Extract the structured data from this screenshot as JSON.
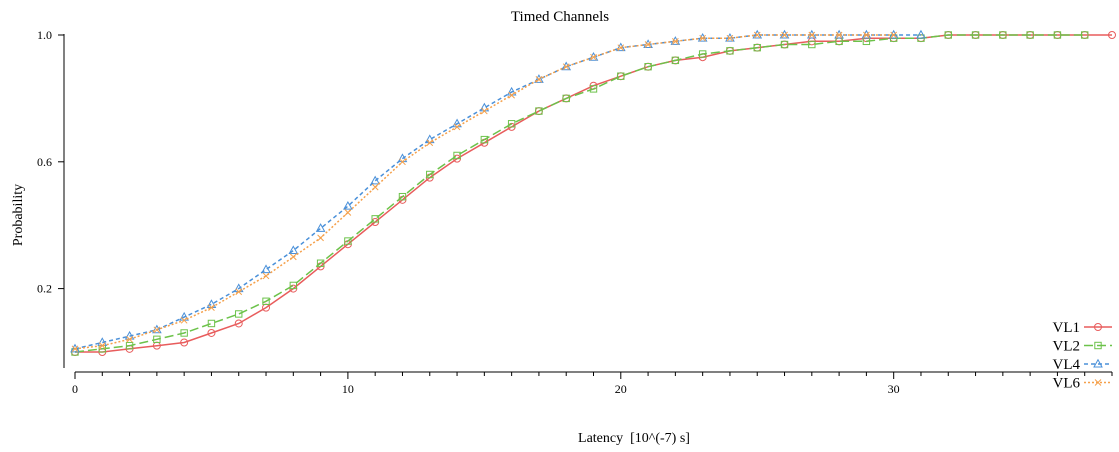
{
  "chart_data": {
    "type": "line",
    "title": "Timed Channels",
    "xlabel": "Latency  [10^(-7) s]",
    "ylabel": "Probability",
    "xlim": [
      0,
      38
    ],
    "ylim": [
      0.0,
      1.0
    ],
    "x_ticks": [
      0,
      10,
      20,
      30
    ],
    "y_ticks": [
      0.2,
      0.6,
      1.0
    ],
    "x_tick_labels": [
      "0",
      "10",
      "20",
      "30"
    ],
    "y_tick_labels": [
      "0.2",
      "0.6",
      "1.0"
    ],
    "grid": false,
    "legend_position": "bottom-right",
    "series": [
      {
        "name": "VL1",
        "color": "#e85c5c",
        "marker": "circle",
        "dash": "solid",
        "x": [
          0,
          1,
          2,
          3,
          4,
          5,
          6,
          7,
          8,
          9,
          10,
          11,
          12,
          13,
          14,
          15,
          16,
          17,
          18,
          19,
          20,
          21,
          22,
          23,
          24,
          25,
          26,
          27,
          28,
          29,
          30,
          31,
          32,
          33,
          34,
          35,
          36,
          37,
          38
        ],
        "y": [
          0.0,
          0.0,
          0.01,
          0.02,
          0.03,
          0.06,
          0.09,
          0.14,
          0.2,
          0.27,
          0.34,
          0.41,
          0.48,
          0.55,
          0.61,
          0.66,
          0.71,
          0.76,
          0.8,
          0.84,
          0.87,
          0.9,
          0.92,
          0.93,
          0.95,
          0.96,
          0.97,
          0.98,
          0.98,
          0.99,
          0.99,
          0.99,
          1.0,
          1.0,
          1.0,
          1.0,
          1.0,
          1.0,
          1.0
        ]
      },
      {
        "name": "VL2",
        "color": "#6cc24a",
        "marker": "square",
        "dash": "long-dash",
        "x": [
          0,
          1,
          2,
          3,
          4,
          5,
          6,
          7,
          8,
          9,
          10,
          11,
          12,
          13,
          14,
          15,
          16,
          17,
          18,
          19,
          20,
          21,
          22,
          23,
          24,
          25,
          26,
          27,
          28,
          29,
          30,
          31,
          32,
          33,
          34,
          35,
          36,
          37
        ],
        "y": [
          0.0,
          0.01,
          0.02,
          0.04,
          0.06,
          0.09,
          0.12,
          0.16,
          0.21,
          0.28,
          0.35,
          0.42,
          0.49,
          0.56,
          0.62,
          0.67,
          0.72,
          0.76,
          0.8,
          0.83,
          0.87,
          0.9,
          0.92,
          0.94,
          0.95,
          0.96,
          0.97,
          0.97,
          0.98,
          0.98,
          0.99,
          0.99,
          1.0,
          1.0,
          1.0,
          1.0,
          1.0,
          1.0
        ]
      },
      {
        "name": "VL4",
        "color": "#4a90d9",
        "marker": "triangle",
        "dash": "short-dash",
        "x": [
          0,
          1,
          2,
          3,
          4,
          5,
          6,
          7,
          8,
          9,
          10,
          11,
          12,
          13,
          14,
          15,
          16,
          17,
          18,
          19,
          20,
          21,
          22,
          23,
          24,
          25,
          26,
          27,
          28,
          29,
          30,
          31
        ],
        "y": [
          0.01,
          0.03,
          0.05,
          0.07,
          0.11,
          0.15,
          0.2,
          0.26,
          0.32,
          0.39,
          0.46,
          0.54,
          0.61,
          0.67,
          0.72,
          0.77,
          0.82,
          0.86,
          0.9,
          0.93,
          0.96,
          0.97,
          0.98,
          0.99,
          0.99,
          1.0,
          1.0,
          1.0,
          1.0,
          1.0,
          1.0,
          1.0
        ]
      },
      {
        "name": "VL6",
        "color": "#f5a04a",
        "marker": "x",
        "dash": "dotted",
        "x": [
          0,
          1,
          2,
          3,
          4,
          5,
          6,
          7,
          8,
          9,
          10,
          11,
          12,
          13,
          14,
          15,
          16,
          17,
          18,
          19,
          20,
          21,
          22,
          23,
          24,
          25,
          26,
          27,
          28,
          29,
          30
        ],
        "y": [
          0.01,
          0.02,
          0.04,
          0.07,
          0.1,
          0.14,
          0.19,
          0.24,
          0.3,
          0.36,
          0.44,
          0.52,
          0.6,
          0.66,
          0.71,
          0.76,
          0.81,
          0.86,
          0.9,
          0.93,
          0.96,
          0.97,
          0.98,
          0.99,
          0.99,
          1.0,
          1.0,
          1.0,
          1.0,
          1.0,
          1.0
        ]
      }
    ]
  }
}
